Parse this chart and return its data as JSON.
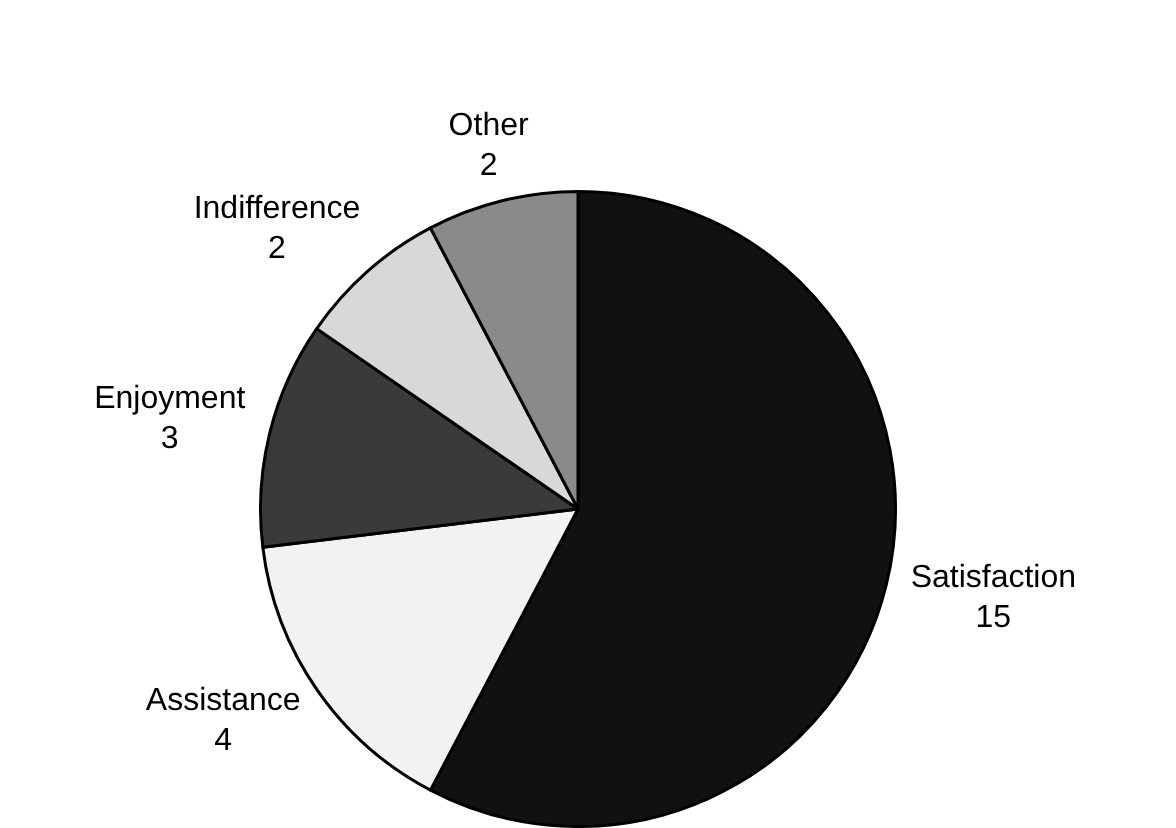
{
  "chart_data": {
    "type": "pie",
    "categories": [
      "Satisfaction",
      "Assistance",
      "Enjoyment",
      "Indifference",
      "Other"
    ],
    "values": [
      15,
      4,
      3,
      2,
      2
    ],
    "colors": [
      "#111111",
      "#f2f2f2",
      "#3a3a3a",
      "#d8d8d8",
      "#8a8a8a"
    ],
    "data_labels": true,
    "legend": false
  }
}
